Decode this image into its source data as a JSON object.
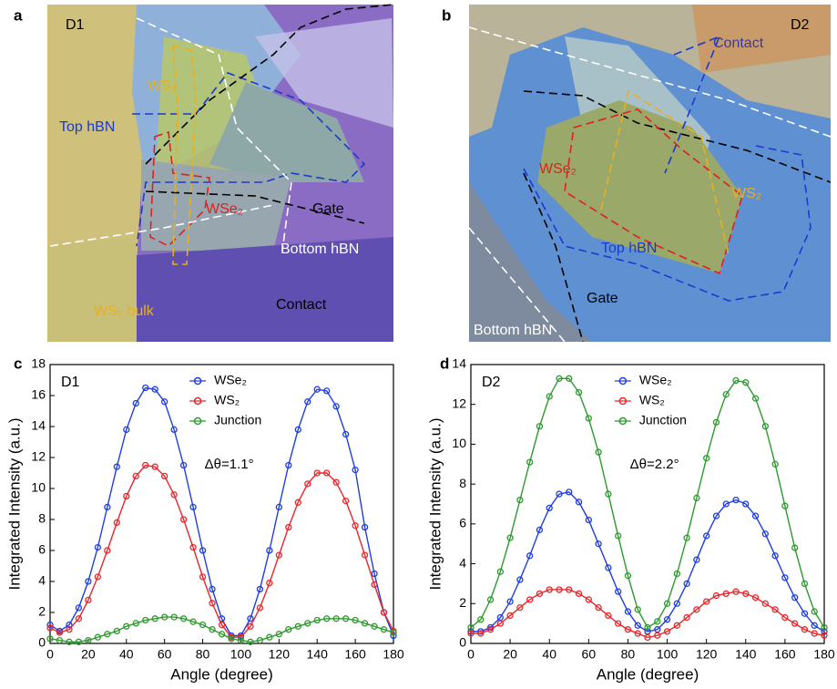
{
  "panels": [
    {
      "letter": "a",
      "labels": [
        "D1",
        "WS₂",
        "Top hBN",
        "WSe₂",
        "Gate",
        "Bottom hBN",
        "Contact",
        "WS₂ bulk"
      ]
    },
    {
      "letter": "b",
      "labels": [
        "D2",
        "Contact",
        "WSe₂",
        "WS₂",
        "Top hBN",
        "Gate",
        "Bottom hBN"
      ]
    }
  ],
  "chart_data": [
    {
      "type": "line",
      "label": "c",
      "annotations": [
        "D1",
        "Δθ=1.1°"
      ],
      "x_label": "Angle (degree)",
      "y_label": "Integrated Intensity (a.u.)",
      "x": [
        0,
        5,
        10,
        15,
        20,
        25,
        30,
        35,
        40,
        45,
        50,
        55,
        60,
        65,
        70,
        75,
        80,
        85,
        90,
        95,
        100,
        105,
        110,
        115,
        120,
        125,
        130,
        135,
        140,
        145,
        150,
        155,
        160,
        165,
        170,
        175,
        180
      ],
      "xlim": [
        0,
        180
      ],
      "xticks": [
        0,
        20,
        40,
        60,
        80,
        100,
        120,
        140,
        160,
        180
      ],
      "ylim": [
        0,
        18
      ],
      "yticks": [
        0,
        2,
        4,
        6,
        8,
        10,
        12,
        14,
        16,
        18
      ],
      "series": [
        {
          "name": "WSe₂",
          "color": "#1f3ee0",
          "values": [
            1.2,
            0.8,
            1.2,
            2.3,
            4.0,
            6.2,
            8.8,
            11.4,
            13.8,
            15.5,
            16.5,
            16.4,
            15.6,
            13.8,
            11.5,
            8.8,
            6.0,
            3.5,
            1.6,
            0.5,
            0.5,
            1.6,
            3.5,
            6.0,
            8.8,
            11.5,
            13.8,
            15.6,
            16.4,
            16.3,
            15.3,
            13.5,
            11.2,
            7.5,
            4.5,
            2.0,
            0.5
          ]
        },
        {
          "name": "WS₂",
          "color": "#e8262b",
          "values": [
            1.0,
            0.7,
            0.9,
            1.6,
            2.8,
            4.3,
            6.0,
            7.8,
            9.5,
            10.8,
            11.5,
            11.4,
            10.8,
            9.6,
            8.0,
            6.2,
            4.3,
            2.6,
            1.2,
            0.4,
            0.4,
            1.1,
            2.3,
            3.9,
            5.7,
            7.5,
            9.1,
            10.3,
            11.0,
            11.0,
            10.4,
            9.2,
            7.6,
            5.7,
            3.8,
            2.0,
            0.8
          ]
        },
        {
          "name": "Junction",
          "color": "#2e9a2e",
          "values": [
            0.3,
            0.2,
            0.1,
            0.1,
            0.2,
            0.4,
            0.6,
            0.8,
            1.1,
            1.3,
            1.5,
            1.6,
            1.7,
            1.7,
            1.6,
            1.4,
            1.2,
            0.9,
            0.6,
            0.3,
            0.2,
            0.1,
            0.2,
            0.4,
            0.6,
            0.9,
            1.1,
            1.3,
            1.5,
            1.6,
            1.6,
            1.6,
            1.5,
            1.3,
            1.1,
            0.9,
            0.7
          ]
        }
      ]
    },
    {
      "type": "line",
      "label": "d",
      "annotations": [
        "D2",
        "Δθ=2.2°"
      ],
      "x_label": "Angle (degree)",
      "y_label": "Integrated Intensity (a.u.)",
      "x": [
        0,
        5,
        10,
        15,
        20,
        25,
        30,
        35,
        40,
        45,
        50,
        55,
        60,
        65,
        70,
        75,
        80,
        85,
        90,
        95,
        100,
        105,
        110,
        115,
        120,
        125,
        130,
        135,
        140,
        145,
        150,
        155,
        160,
        165,
        170,
        175,
        180
      ],
      "xlim": [
        0,
        180
      ],
      "xticks": [
        0,
        20,
        40,
        60,
        80,
        100,
        120,
        140,
        160,
        180
      ],
      "ylim": [
        0,
        14
      ],
      "yticks": [
        0,
        2,
        4,
        6,
        8,
        10,
        12,
        14
      ],
      "series": [
        {
          "name": "WSe₂",
          "color": "#1f3ee0",
          "values": [
            0.6,
            0.6,
            0.8,
            1.3,
            2.1,
            3.2,
            4.4,
            5.7,
            6.8,
            7.5,
            7.6,
            7.1,
            6.2,
            5.0,
            3.8,
            2.6,
            1.6,
            0.9,
            0.6,
            0.7,
            1.2,
            2.0,
            3.0,
            4.2,
            5.4,
            6.4,
            7.0,
            7.2,
            7.0,
            6.4,
            5.5,
            4.4,
            3.3,
            2.3,
            1.5,
            0.9,
            0.6
          ]
        },
        {
          "name": "WS₂",
          "color": "#e8262b",
          "values": [
            0.5,
            0.5,
            0.7,
            1.0,
            1.4,
            1.8,
            2.2,
            2.5,
            2.7,
            2.7,
            2.7,
            2.5,
            2.2,
            1.8,
            1.4,
            1.0,
            0.7,
            0.5,
            0.3,
            0.4,
            0.6,
            0.9,
            1.3,
            1.7,
            2.1,
            2.4,
            2.5,
            2.6,
            2.5,
            2.3,
            2.0,
            1.7,
            1.3,
            1.0,
            0.7,
            0.5,
            0.4
          ]
        },
        {
          "name": "Junction",
          "color": "#2e9a2e",
          "values": [
            0.8,
            1.2,
            2.2,
            3.6,
            5.3,
            7.2,
            9.1,
            10.9,
            12.4,
            13.3,
            13.3,
            12.6,
            11.3,
            9.6,
            7.5,
            5.4,
            3.4,
            1.7,
            0.8,
            1.1,
            2.0,
            3.5,
            5.3,
            7.3,
            9.3,
            11.1,
            12.5,
            13.2,
            13.1,
            12.3,
            10.9,
            9.0,
            6.9,
            4.8,
            3.0,
            1.6,
            0.8
          ]
        }
      ]
    }
  ]
}
